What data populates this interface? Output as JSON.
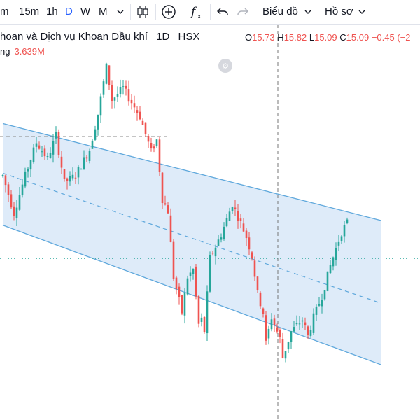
{
  "toolbar": {
    "intervals": [
      {
        "label": "m"
      },
      {
        "label": "15m"
      },
      {
        "label": "1h"
      },
      {
        "label": "D"
      },
      {
        "label": "W"
      },
      {
        "label": "M"
      }
    ],
    "active_interval": "D",
    "chart_menu_label": "Biểu đồ",
    "profile_menu_label": "Hồ sơ",
    "icons": [
      "chevron-down-icon",
      "candlestick-icon",
      "add-indicator-icon",
      "function-icon",
      "undo-icon",
      "redo-icon"
    ]
  },
  "legend": {
    "title": "hoan và Dịch vụ Khoan Dầu khí",
    "interval": "1D",
    "exchange": "HSX",
    "open_label": "O",
    "open": "15.73",
    "high_label": "H",
    "high": "15.82",
    "low_label": "L",
    "low": "15.09",
    "close_label": "C",
    "close": "15.09",
    "change": "−0.45 (−2",
    "volume_label": "ng",
    "volume": "3.639M"
  },
  "colors": {
    "up": "#26a69a",
    "down": "#ef5350",
    "channel_fill": "#d8e8f8",
    "channel_line": "#5fa8dc",
    "accent": "#2962ff"
  },
  "chart_data": {
    "type": "candlestick",
    "channel": {
      "upper": [
        {
          "x": 0,
          "price": 20.8
        },
        {
          "x": 135,
          "price": 16.7
        }
      ],
      "middle": [
        {
          "x": 0,
          "price": 18.7
        },
        {
          "x": 135,
          "price": 13.2
        }
      ],
      "lower": [
        {
          "x": 0,
          "price": 16.5
        },
        {
          "x": 135,
          "price": 10.6
        }
      ]
    },
    "last_price": 15.09,
    "candles": []
  }
}
